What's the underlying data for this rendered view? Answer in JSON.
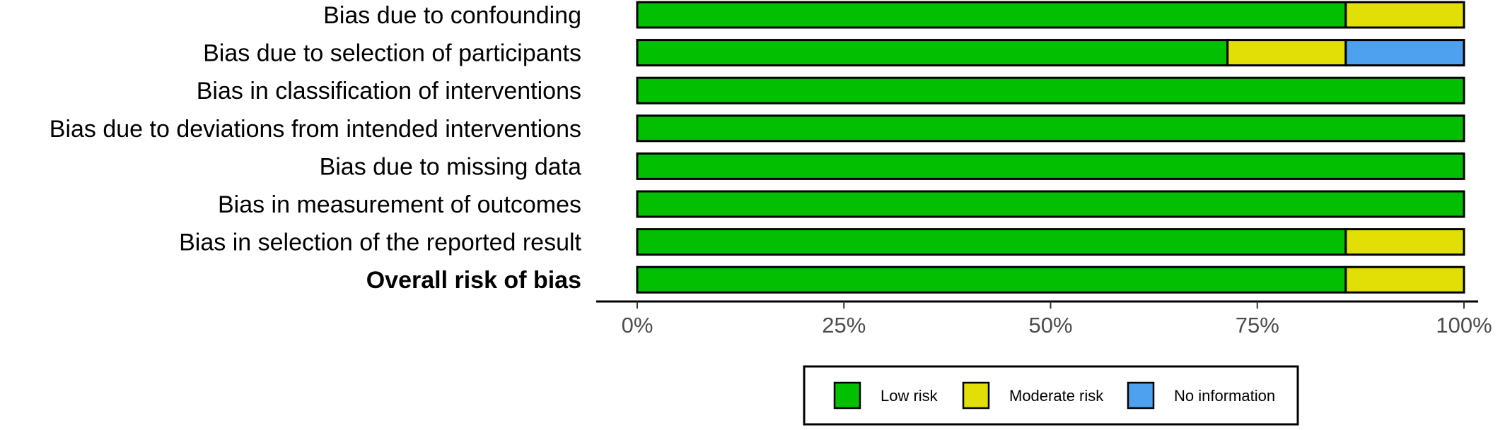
{
  "chart_data": {
    "type": "bar",
    "orientation": "horizontal",
    "stacked": true,
    "categories": [
      "Bias due to confounding",
      "Bias due to selection of participants",
      "Bias in classification of interventions",
      "Bias due to deviations from intended interventions",
      "Bias due to missing data",
      "Bias in measurement of outcomes",
      "Bias in selection of the reported result",
      "Overall risk of bias"
    ],
    "bold_categories": [
      "Overall risk of bias"
    ],
    "series": [
      {
        "name": "Low risk",
        "color": "#02bf02",
        "values": [
          85.7,
          71.4,
          100,
          100,
          100,
          100,
          85.7,
          85.7
        ]
      },
      {
        "name": "Moderate risk",
        "color": "#e2df07",
        "values": [
          14.3,
          14.3,
          0,
          0,
          0,
          0,
          14.3,
          14.3
        ]
      },
      {
        "name": "No information",
        "color": "#4ea1ee",
        "values": [
          0,
          14.3,
          0,
          0,
          0,
          0,
          0,
          0
        ]
      }
    ],
    "xlim": [
      0,
      100
    ],
    "xticks": [
      0,
      25,
      50,
      75,
      100
    ],
    "xtick_labels": [
      "0%",
      "25%",
      "50%",
      "75%",
      "100%"
    ],
    "grid": false,
    "legend_position": "bottom"
  }
}
